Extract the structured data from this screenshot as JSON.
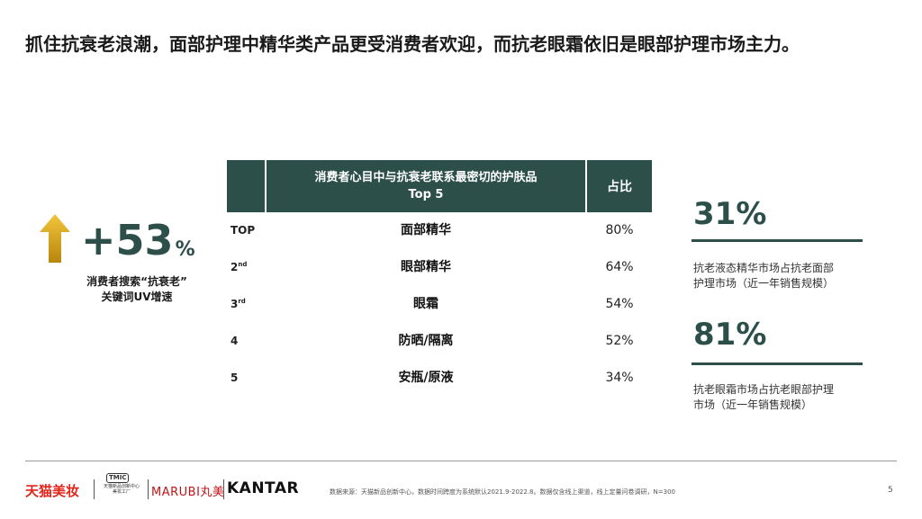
{
  "title": "抓住抗衰老浪潮，面部护理中精华类产品更受消费者欢迎，而抗老眼霜依旧是眼部护理市场主力。",
  "growth": {
    "value": "+53",
    "unit": "%",
    "label_line1": "消费者搜索“抗衰老”",
    "label_line2": "关键词UV增速"
  },
  "table": {
    "header_product_line1": "消费者心目中与抗衰老联系最密切的护肤品",
    "header_product_line2": "Top 5",
    "header_share": "占比",
    "rows": [
      {
        "rank": "TOP",
        "rank_sup": "",
        "product": "面部精华",
        "share": "80%"
      },
      {
        "rank": "2",
        "rank_sup": "nd",
        "product": "眼部精华",
        "share": "64%"
      },
      {
        "rank": "3",
        "rank_sup": "rd",
        "product": "眼霜",
        "share": "54%"
      },
      {
        "rank": "4",
        "rank_sup": "",
        "product": "防晒/隔离",
        "share": "52%"
      },
      {
        "rank": "5",
        "rank_sup": "",
        "product": "安瓶/原液",
        "share": "34%"
      }
    ]
  },
  "stats": [
    {
      "value": "31%",
      "desc_line1": "抗老液态精华市场占抗老面部",
      "desc_line2": "护理市场（近一年销售规模）"
    },
    {
      "value": "81%",
      "desc_line1": "抗老眼霜市场占抗老眼部护理",
      "desc_line2": "市场（近一年销售规模）"
    }
  ],
  "footer": {
    "logo_tmall": "天猫美妆",
    "logo_tmic": "TMIC",
    "logo_tmic_sub1": "天猫新品创新中心",
    "logo_tmic_sub2": "美妆工厂",
    "logo_marubi": "MARUBI丸美",
    "logo_kantar": "KANTAR",
    "source": "数据来源：天猫新品创新中心，数据时间跨度为系统默认2021.9-2022.8。数据仅含线上渠道，线上定量问卷调研，N=300",
    "page_number": "5"
  },
  "colors": {
    "accent": "#2c4f4a",
    "arrow_gold": "#d4a018",
    "tmall_red": "#e1251b"
  },
  "icons": {
    "growth_arrow": "arrow-up-icon"
  }
}
